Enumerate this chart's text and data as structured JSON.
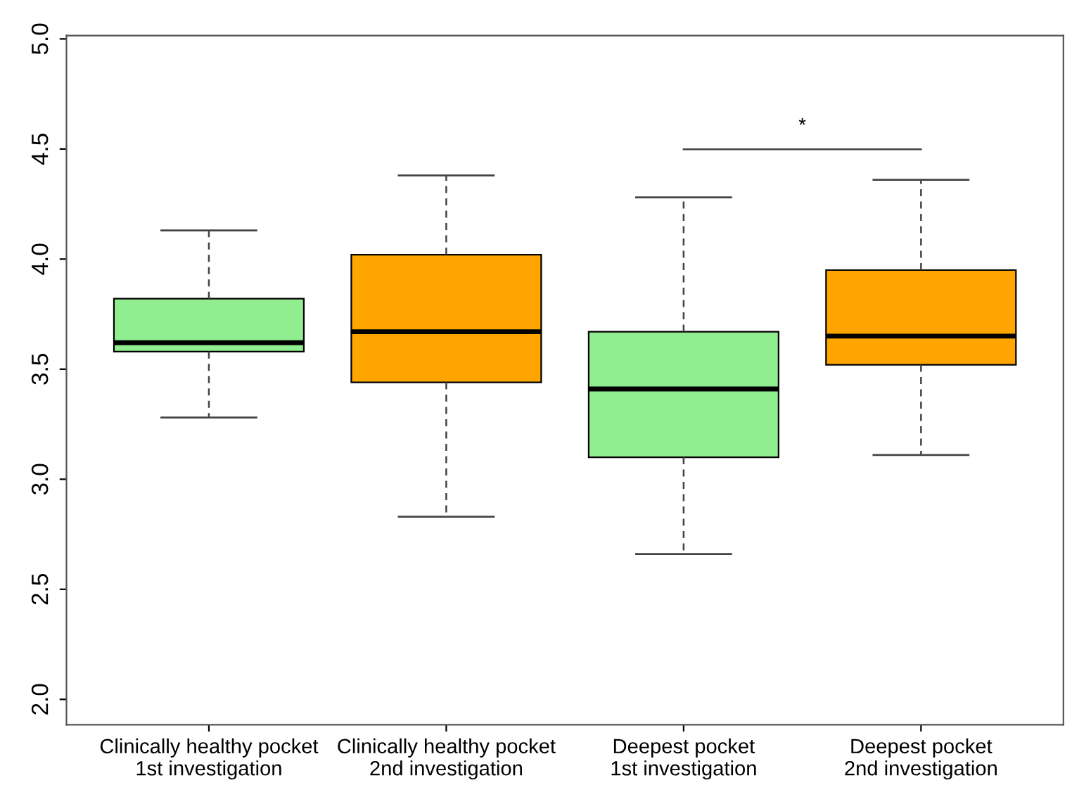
{
  "chart_data": {
    "type": "box",
    "categories": [
      "Clinically healthy pocket\n1st investigation",
      "Clinically healthy pocket\n2nd investigation",
      "Deepest pocket\n1st investigation",
      "Deepest pocket\n2nd investigation"
    ],
    "boxes": [
      {
        "low": 3.28,
        "q1": 3.58,
        "median": 3.62,
        "q3": 3.82,
        "high": 4.13
      },
      {
        "low": 2.83,
        "q1": 3.44,
        "median": 3.67,
        "q3": 4.02,
        "high": 4.38
      },
      {
        "low": 2.66,
        "q1": 3.1,
        "median": 3.41,
        "q3": 3.67,
        "high": 4.28
      },
      {
        "low": 3.11,
        "q1": 3.52,
        "median": 3.65,
        "q3": 3.95,
        "high": 4.36
      }
    ],
    "colors": [
      "#90ee90",
      "#ffa500",
      "#90ee90",
      "#ffa500"
    ],
    "ylim": [
      1.885,
      5.015
    ],
    "yticks": [
      {
        "value": 2,
        "label": "2.0"
      },
      2.5,
      {
        "value": 3,
        "label": "3.0"
      },
      3.5,
      {
        "value": 4,
        "label": "4.0"
      },
      4.5,
      {
        "value": 5,
        "label": "5.0"
      }
    ],
    "annotations": [
      "*"
    ],
    "grid": false
  }
}
